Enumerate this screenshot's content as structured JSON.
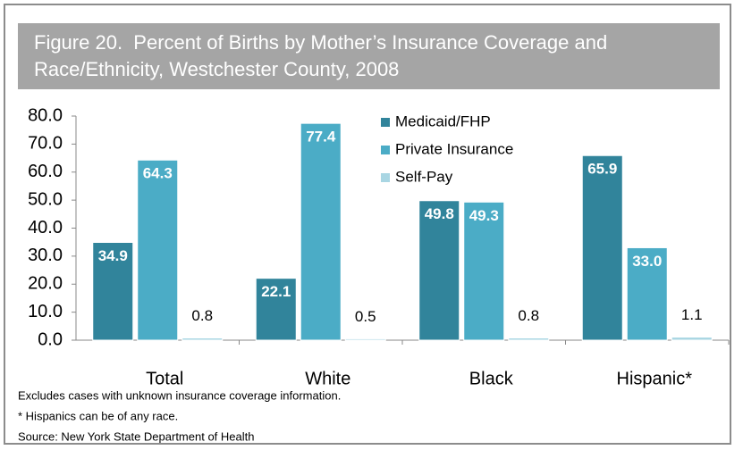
{
  "chart_data": {
    "type": "bar",
    "title": "Figure 20.  Percent of Births by Mother’s Insurance Coverage and Race/Ethnicity, Westchester County, 2008",
    "categories": [
      "Total",
      "White",
      "Black",
      "Hispanic*"
    ],
    "series": [
      {
        "name": "Medicaid/FHP",
        "color": "#31849b",
        "values": [
          34.9,
          22.1,
          49.8,
          65.9
        ]
      },
      {
        "name": "Private Insurance",
        "color": "#4bacc6",
        "values": [
          64.3,
          77.4,
          49.3,
          33.0
        ],
        "value_labels": [
          "64.3",
          "77.4",
          "49.3",
          "33.0"
        ]
      },
      {
        "name": "Self-Pay",
        "color": "#a9d6e3",
        "values": [
          0.8,
          0.5,
          0.8,
          1.1
        ]
      }
    ],
    "ylim": [
      0,
      80
    ],
    "yticks": [
      {
        "value": 0,
        "label": "0.0"
      },
      {
        "value": 10,
        "label": "10.0"
      },
      {
        "value": 20,
        "label": "20.0"
      },
      {
        "value": 30,
        "label": "30.0"
      },
      {
        "value": 40,
        "label": "40.0"
      },
      {
        "value": 50,
        "label": "50.0"
      },
      {
        "value": 60,
        "label": "60.0"
      },
      {
        "value": 70,
        "label": "70.0"
      },
      {
        "value": 80,
        "label": "80.0"
      }
    ],
    "legend": "top-right",
    "notes": [
      "Excludes cases with unknown insurance coverage information.",
      "* Hispanics can be of any race.",
      "Source: New York State Department of Health"
    ]
  }
}
